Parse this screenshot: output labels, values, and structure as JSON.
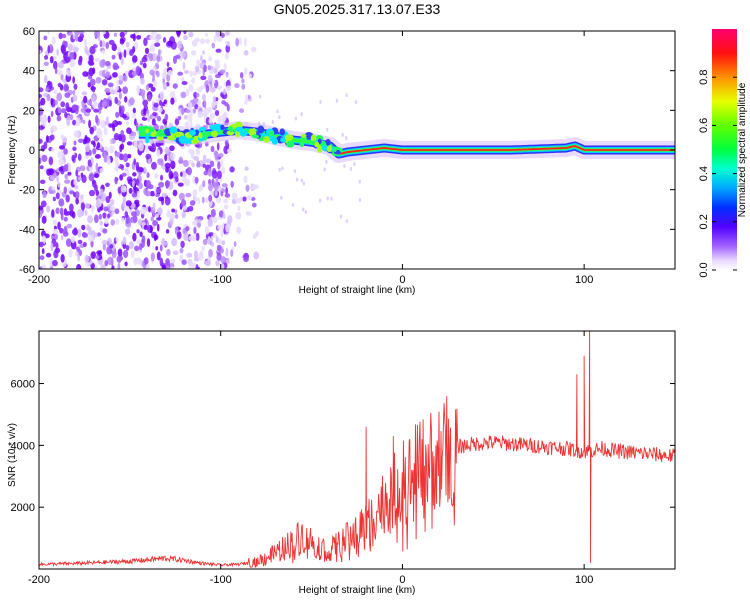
{
  "title": "GN05.2025.317.13.07.E33",
  "chart_data": [
    {
      "type": "heatmap",
      "name": "spectrogram",
      "xlabel": "Height of straight line (km)",
      "ylabel": "Frequency (Hz)",
      "xlim": [
        -200,
        150
      ],
      "ylim": [
        -60,
        60
      ],
      "xticks": [
        -200,
        -100,
        0,
        100
      ],
      "yticks": [
        -60,
        -40,
        -20,
        0,
        20,
        40,
        60
      ],
      "ridge": {
        "x": [
          -145,
          -130,
          -115,
          -100,
          -90,
          -80,
          -70,
          -60,
          -50,
          -40,
          -35,
          -30,
          -20,
          -10,
          0,
          10,
          30,
          60,
          90,
          95,
          100,
          150
        ],
        "y": [
          8,
          8,
          7,
          9,
          10,
          9,
          7,
          5,
          4,
          2,
          -2,
          -1,
          0,
          1,
          0,
          0,
          0,
          0,
          1,
          2,
          0,
          0
        ]
      },
      "colorbar": {
        "label": "Normalized spectral amplitude",
        "range": [
          0,
          1
        ],
        "ticks": [
          0.0,
          0.2,
          0.4,
          0.6,
          0.8
        ],
        "tick_labels": [
          "0.0",
          "0.2",
          "0.4",
          "0.6",
          "0.8"
        ]
      }
    },
    {
      "type": "line",
      "name": "snr",
      "xlabel": "Height of straight line (km)",
      "ylabel": "SNR (10 * v/v)",
      "xlim": [
        -200,
        150
      ],
      "ylim": [
        0,
        7700
      ],
      "xticks": [
        -200,
        -100,
        0,
        100
      ],
      "yticks": [
        2000,
        4000,
        6000
      ],
      "color": "#ee3333",
      "envelope": {
        "x": [
          -200,
          -180,
          -150,
          -130,
          -120,
          -110,
          -100,
          -90,
          -80,
          -70,
          -60,
          -55,
          -50,
          -45,
          -40,
          -30,
          -20,
          -10,
          0,
          10,
          20,
          30,
          40,
          50,
          60,
          70,
          80,
          90,
          95,
          100,
          105,
          110,
          120,
          130,
          140,
          150
        ],
        "y": [
          150,
          180,
          250,
          350,
          280,
          180,
          130,
          150,
          250,
          500,
          900,
          1100,
          900,
          700,
          600,
          1000,
          1500,
          2200,
          2800,
          3300,
          3700,
          3950,
          4050,
          4100,
          4050,
          4000,
          3950,
          3900,
          3850,
          3800,
          3850,
          3900,
          3800,
          3750,
          3700,
          3650
        ]
      },
      "spikes": [
        {
          "x": -20,
          "y": 4600
        },
        {
          "x": -5,
          "y": 4300
        },
        {
          "x": 96,
          "y": 6300
        },
        {
          "x": 100,
          "y": 6900
        },
        {
          "x": 103,
          "y": 7700
        },
        {
          "x": 103.5,
          "y": 200
        }
      ]
    }
  ],
  "colors": {
    "axis": "#000000",
    "line": "#ee3333",
    "ridge_center": "#ee2222",
    "ridge_outer": "#3333ff"
  }
}
